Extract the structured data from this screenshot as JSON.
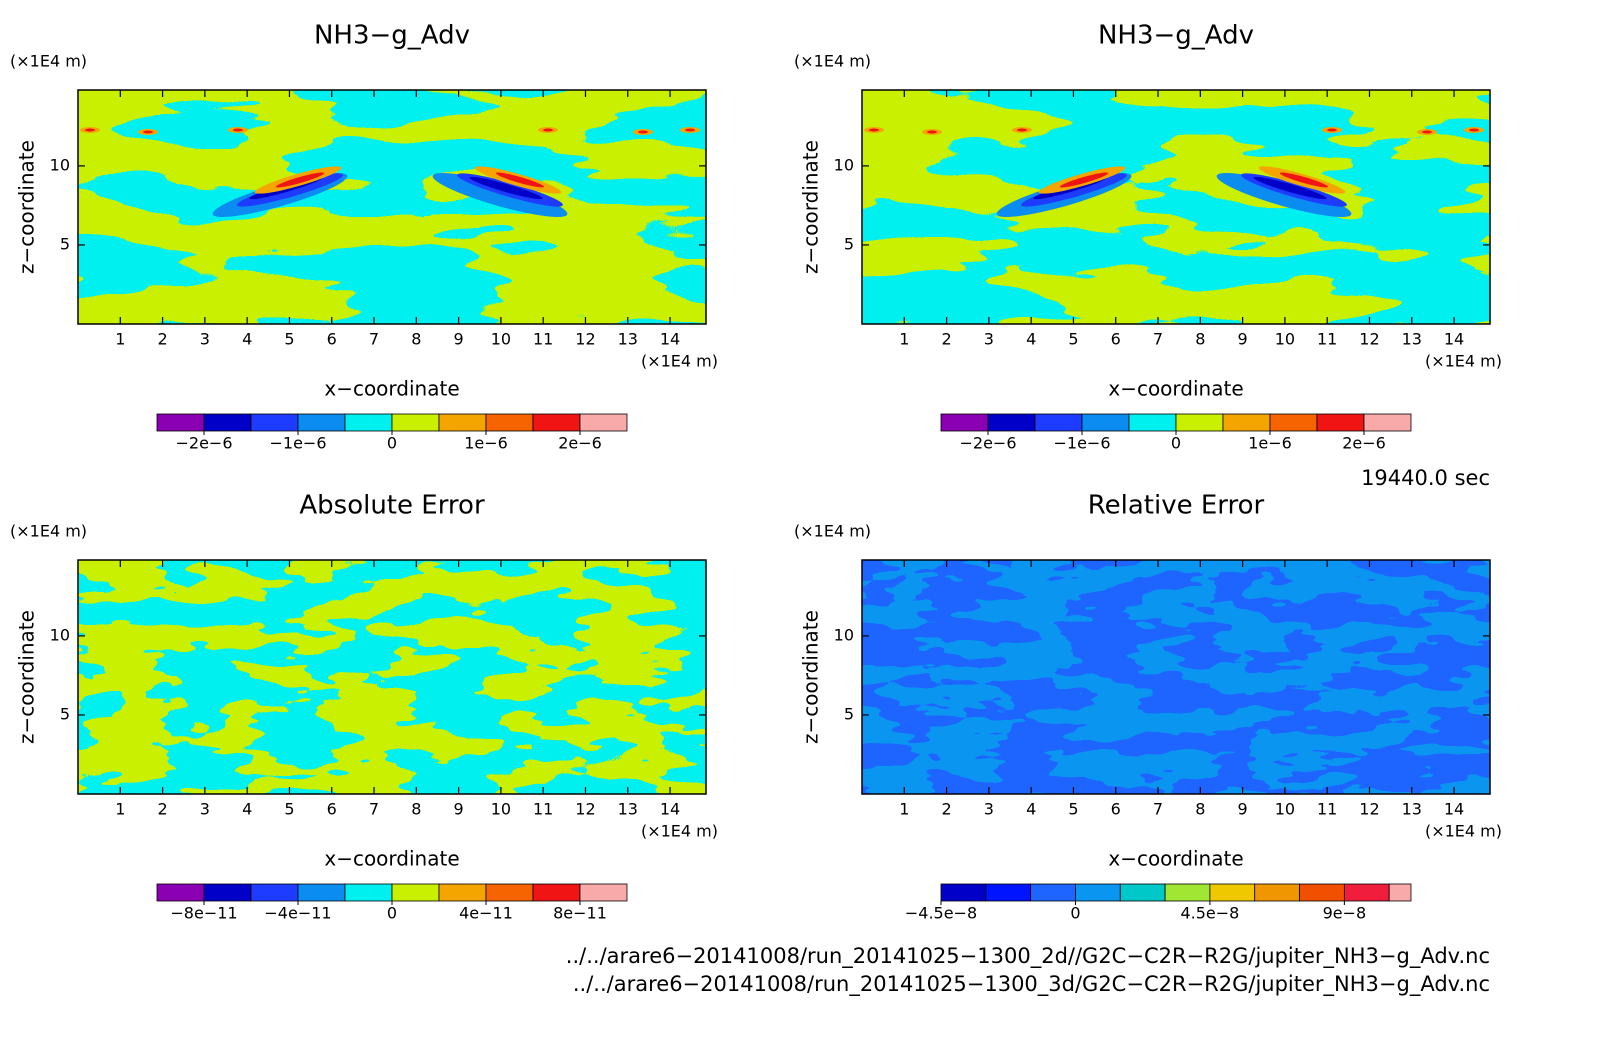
{
  "chart_data": [
    {
      "type": "contour",
      "title": "NH3−g_Adv",
      "xlabel": "x−coordinate",
      "ylabel": "z−coordinate",
      "x_unit": "(×1E4 m)",
      "y_unit": "(×1E4 m)",
      "xlim": [
        0,
        14.85
      ],
      "ylim": [
        0,
        14.8
      ],
      "xticks": [
        1,
        2,
        3,
        4,
        5,
        6,
        7,
        8,
        9,
        10,
        11,
        12,
        13,
        14
      ],
      "yticks": [
        5,
        10
      ],
      "colorbar": {
        "clim": [
          -2.5e-06,
          2.5e-06
        ],
        "levels": [
          -2e-06,
          -1.5e-06,
          -1e-06,
          -5e-07,
          0,
          5e-07,
          1e-06,
          1.5e-06,
          2e-06
        ],
        "colors": [
          "#8c00b4",
          "#0000c8",
          "#1e3cff",
          "#0a8cf0",
          "#00f0f0",
          "#c8f000",
          "#f5a500",
          "#f56400",
          "#f01414",
          "#f8aaaa"
        ],
        "ticks": [
          {
            "value": -2e-06,
            "label": "−2e−6"
          },
          {
            "value": -1e-06,
            "label": "−1e−6"
          },
          0,
          {
            "value": 1e-06,
            "label": "1e−6"
          },
          {
            "value": 2e-06,
            "label": "2e−6"
          }
        ]
      }
    },
    {
      "type": "contour",
      "title": "NH3−g_Adv",
      "xlabel": "x−coordinate",
      "ylabel": "z−coordinate",
      "x_unit": "(×1E4 m)",
      "y_unit": "(×1E4 m)",
      "xlim": [
        0,
        14.85
      ],
      "ylim": [
        0,
        14.8
      ],
      "xticks": [
        1,
        2,
        3,
        4,
        5,
        6,
        7,
        8,
        9,
        10,
        11,
        12,
        13,
        14
      ],
      "yticks": [
        5,
        10
      ],
      "colorbar": {
        "clim": [
          -2.5e-06,
          2.5e-06
        ],
        "levels": [
          -2e-06,
          -1.5e-06,
          -1e-06,
          -5e-07,
          0,
          5e-07,
          1e-06,
          1.5e-06,
          2e-06
        ],
        "colors": [
          "#8c00b4",
          "#0000c8",
          "#1e3cff",
          "#0a8cf0",
          "#00f0f0",
          "#c8f000",
          "#f5a500",
          "#f56400",
          "#f01414",
          "#f8aaaa"
        ],
        "ticks": [
          {
            "value": -2e-06,
            "label": "−2e−6"
          },
          {
            "value": -1e-06,
            "label": "−1e−6"
          },
          0,
          {
            "value": 1e-06,
            "label": "1e−6"
          },
          {
            "value": 2e-06,
            "label": "2e−6"
          }
        ]
      }
    },
    {
      "type": "contour",
      "title": "Absolute Error",
      "xlabel": "x−coordinate",
      "ylabel": "z−coordinate",
      "x_unit": "(×1E4 m)",
      "y_unit": "(×1E4 m)",
      "xlim": [
        0,
        14.85
      ],
      "ylim": [
        0,
        14.8
      ],
      "xticks": [
        1,
        2,
        3,
        4,
        5,
        6,
        7,
        8,
        9,
        10,
        11,
        12,
        13,
        14
      ],
      "yticks": [
        5,
        10
      ],
      "colorbar": {
        "clim": [
          -1e-10,
          1e-10
        ],
        "levels": [
          -8e-11,
          -6e-11,
          -4e-11,
          -2e-11,
          0,
          2e-11,
          4e-11,
          6e-11,
          8e-11
        ],
        "colors": [
          "#8c00b4",
          "#0000c8",
          "#1e3cff",
          "#0a8cf0",
          "#00f0f0",
          "#c8f000",
          "#f5a500",
          "#f56400",
          "#f01414",
          "#f8aaaa"
        ],
        "ticks": [
          {
            "value": -8e-11,
            "label": "−8e−11"
          },
          {
            "value": -4e-11,
            "label": "−4e−11"
          },
          0,
          {
            "value": 4e-11,
            "label": "4e−11"
          },
          {
            "value": 8e-11,
            "label": "8e−11"
          }
        ]
      }
    },
    {
      "type": "contour",
      "title": "Relative Error",
      "xlabel": "x−coordinate",
      "ylabel": "z−coordinate",
      "x_unit": "(×1E4 m)",
      "y_unit": "(×1E4 m)",
      "xlim": [
        0,
        14.85
      ],
      "ylim": [
        0,
        14.8
      ],
      "xticks": [
        1,
        2,
        3,
        4,
        5,
        6,
        7,
        8,
        9,
        10,
        11,
        12,
        13,
        14
      ],
      "yticks": [
        5,
        10
      ],
      "colorbar": {
        "clim": [
          -4.5e-08,
          1.123e-07
        ],
        "levels": [
          -4.5e-08,
          -3e-08,
          -1.5e-08,
          0,
          1.5e-08,
          3e-08,
          4.5e-08,
          6e-08,
          7.5e-08,
          9e-08,
          1.05e-07
        ],
        "colors": [
          "#8c00b4",
          "#0000c8",
          "#0014ff",
          "#1e64ff",
          "#0a96f0",
          "#00c8c8",
          "#a0e632",
          "#f0c800",
          "#f09600",
          "#f05000",
          "#f01e3c",
          "#f8aaaa"
        ],
        "ticks": [
          {
            "value": -4.5e-08,
            "label": "−4.5e−8"
          },
          0,
          {
            "value": 4.5e-08,
            "label": "4.5e−8"
          },
          {
            "value": 9e-08,
            "label": "9e−8"
          }
        ]
      }
    }
  ],
  "time": "19440.0 sec",
  "files": [
    "../../arare6−20141008/run_20141025−1300_2d//G2C−C2R−R2G/jupiter_NH3−g_Adv.nc",
    "../../arare6−20141008/run_20141025−1300_3d/G2C−C2R−R2G/jupiter_NH3−g_Adv.nc"
  ]
}
